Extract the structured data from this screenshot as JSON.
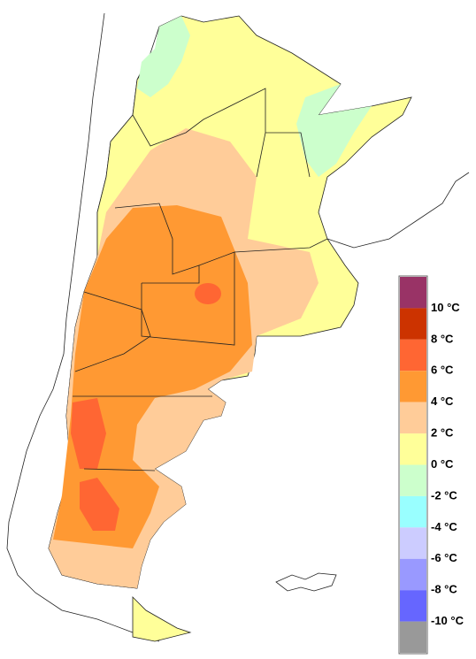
{
  "legend": {
    "colors": [
      "#993366",
      "#cc3300",
      "#ff6633",
      "#ff9933",
      "#ffcc99",
      "#ffff99",
      "#ccffcc",
      "#99ffff",
      "#ccccff",
      "#9999ff",
      "#6666ff",
      "#999999"
    ],
    "labels": [
      "10 °C",
      "8 °C",
      "6 °C",
      "4 °C",
      "2 °C",
      "0 °C",
      "-2 °C",
      "-4 °C",
      "-6 °C",
      "-8 °C",
      "-10 °C"
    ]
  }
}
